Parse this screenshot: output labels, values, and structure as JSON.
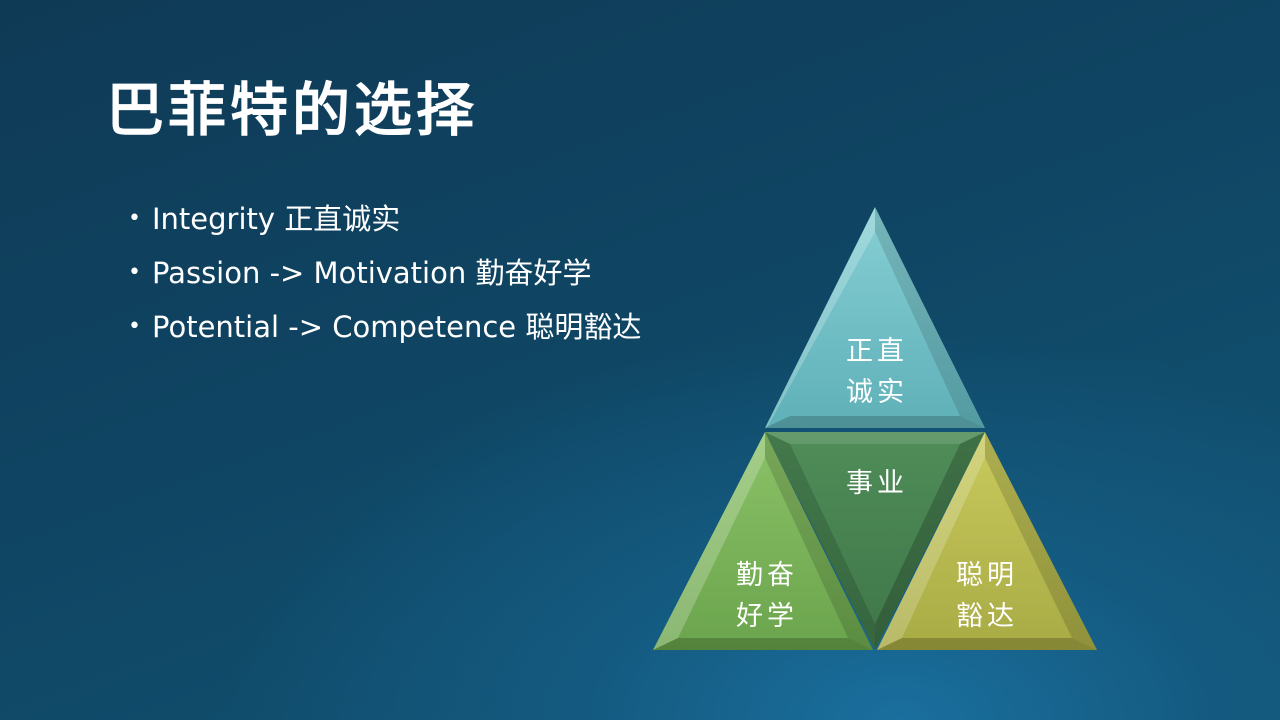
{
  "slide": {
    "title": "巴菲特的选择",
    "bullets": [
      "Integrity 正直诚实",
      "Passion -> Motivation 勤奋好学",
      "Potential -> Competence 聪明豁达"
    ]
  },
  "diagram": {
    "top": {
      "line1": "正直",
      "line2": "诚实",
      "color": "#6cbcc2"
    },
    "center": {
      "label": "事业",
      "color": "#4a8553"
    },
    "left": {
      "line1": "勤奋",
      "line2": "好学",
      "color": "#7cb359"
    },
    "right": {
      "line1": "聪明",
      "line2": "豁达",
      "color": "#b9bb4f"
    }
  }
}
